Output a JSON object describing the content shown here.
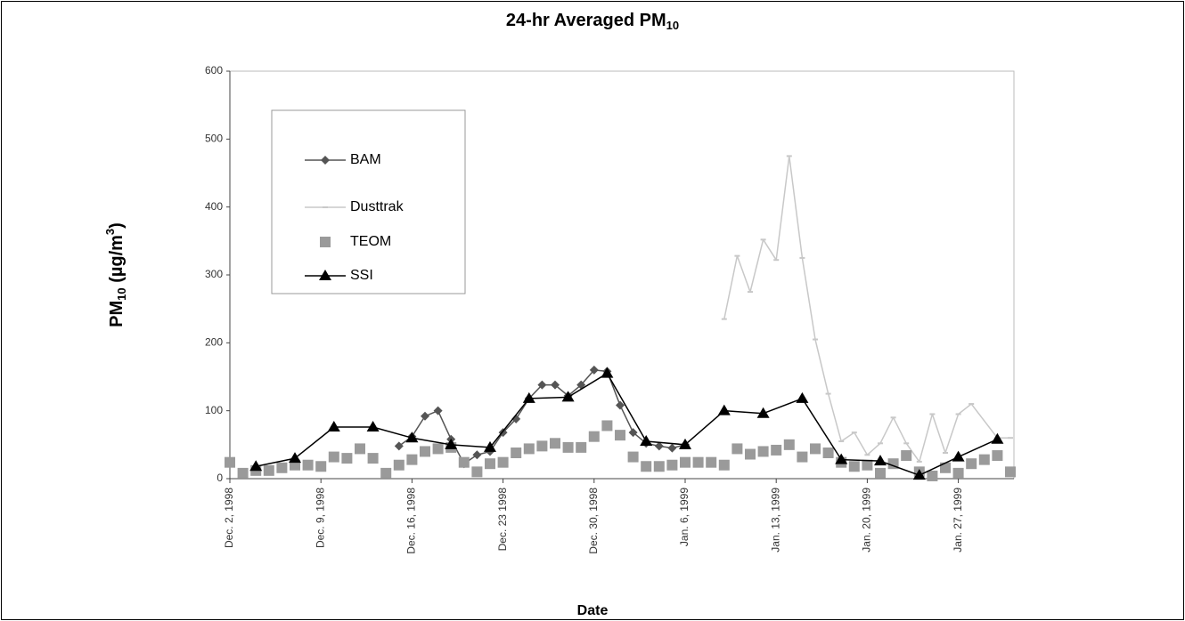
{
  "chart_data": {
    "type": "line",
    "title": "24-hr Averaged PM",
    "title_subscript": "10",
    "xlabel": "Date",
    "ylabel_parts": [
      "PM",
      "10",
      " (µg/m",
      "3",
      ")"
    ],
    "categories": [
      "Dec. 2, 1998",
      null,
      null,
      null,
      null,
      null,
      null,
      "Dec. 9, 1998",
      null,
      null,
      null,
      null,
      null,
      null,
      "Dec. 16, 1998",
      null,
      null,
      null,
      null,
      null,
      null,
      "Dec. 23 1998",
      null,
      null,
      null,
      null,
      null,
      null,
      "Dec. 30, 1998",
      null,
      null,
      null,
      null,
      null,
      null,
      "Jan. 6, 1999",
      null,
      null,
      null,
      null,
      null,
      null,
      "Jan. 13, 1999",
      null,
      null,
      null,
      null,
      null,
      null,
      "Jan. 20, 1999",
      null,
      null,
      null,
      null,
      null,
      null,
      "Jan. 27, 1999",
      null,
      null,
      null,
      null
    ],
    "ylim": [
      0,
      600
    ],
    "yticks": [
      0,
      100,
      200,
      300,
      400,
      500,
      600
    ],
    "grid": false,
    "connect_gaps": true,
    "series": [
      {
        "name": "BAM",
        "color": "#555555",
        "marker": "diamond",
        "line": true,
        "values": [
          null,
          null,
          null,
          null,
          null,
          null,
          null,
          null,
          null,
          null,
          null,
          null,
          null,
          48,
          62,
          92,
          100,
          58,
          22,
          35,
          40,
          68,
          88,
          118,
          138,
          138,
          122,
          138,
          160,
          158,
          108,
          68,
          52,
          48,
          45,
          50,
          null,
          null,
          null,
          null,
          null,
          null,
          null,
          null,
          null,
          null,
          null,
          null,
          null,
          null,
          null,
          null,
          null,
          null,
          null,
          null,
          null,
          null,
          null,
          null,
          null
        ]
      },
      {
        "name": "Dusttrak",
        "color": "#c8c8c8",
        "marker": "dash",
        "line": true,
        "values": [
          null,
          null,
          null,
          null,
          null,
          null,
          null,
          null,
          null,
          null,
          null,
          null,
          null,
          null,
          null,
          null,
          null,
          null,
          null,
          null,
          null,
          null,
          null,
          null,
          null,
          null,
          null,
          null,
          null,
          null,
          null,
          null,
          null,
          null,
          null,
          null,
          null,
          null,
          235,
          328,
          275,
          352,
          322,
          475,
          325,
          205,
          125,
          55,
          68,
          35,
          52,
          90,
          52,
          25,
          95,
          38,
          95,
          110,
          null,
          60,
          60
        ]
      },
      {
        "name": "TEOM",
        "color": "#9a9a9a",
        "marker": "square",
        "line": false,
        "values": [
          24,
          8,
          12,
          12,
          16,
          20,
          20,
          18,
          32,
          30,
          44,
          30,
          8,
          20,
          28,
          40,
          44,
          46,
          24,
          10,
          22,
          24,
          38,
          44,
          48,
          52,
          46,
          46,
          62,
          78,
          64,
          32,
          18,
          18,
          20,
          24,
          24,
          24,
          20,
          44,
          36,
          40,
          42,
          50,
          32,
          44,
          38,
          24,
          18,
          20,
          8,
          22,
          34,
          10,
          4,
          16,
          8,
          22,
          28,
          34,
          10
        ]
      },
      {
        "name": "SSI",
        "color": "#000000",
        "marker": "triangle",
        "line": true,
        "values": [
          null,
          null,
          18,
          null,
          null,
          30,
          null,
          null,
          76,
          null,
          null,
          76,
          null,
          null,
          60,
          null,
          null,
          50,
          null,
          null,
          46,
          null,
          null,
          118,
          null,
          null,
          120,
          null,
          null,
          155,
          null,
          null,
          55,
          null,
          null,
          50,
          null,
          null,
          100,
          null,
          null,
          96,
          null,
          null,
          118,
          null,
          null,
          28,
          null,
          null,
          26,
          null,
          null,
          5,
          null,
          null,
          32,
          null,
          null,
          58,
          null
        ]
      }
    ]
  }
}
